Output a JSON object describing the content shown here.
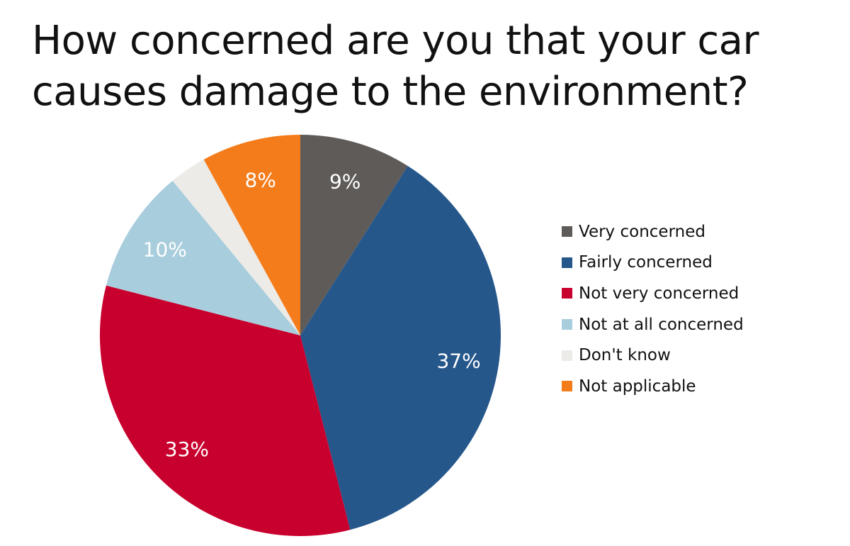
{
  "chart_data": {
    "type": "pie",
    "title_lines": [
      "How concerned are you that your car",
      "causes damage to the environment?"
    ],
    "slices": [
      {
        "name": "Very concerned",
        "value": 9,
        "label": "9%",
        "color": "#5f5b58"
      },
      {
        "name": "Fairly concerned",
        "value": 37,
        "label": "37%",
        "color": "#26578b"
      },
      {
        "name": "Not very concerned",
        "value": 33,
        "label": "33%",
        "color": "#c8002e"
      },
      {
        "name": "Not at all concerned",
        "value": 10,
        "label": "10%",
        "color": "#a8cddc"
      },
      {
        "name": "Don't know",
        "value": 3,
        "label": "",
        "color": "#ecebe7"
      },
      {
        "name": "Not applicable",
        "value": 8,
        "label": "8%",
        "color": "#f47c1b"
      }
    ],
    "legend_position": "right",
    "start_angle": "top",
    "direction": "clockwise"
  }
}
